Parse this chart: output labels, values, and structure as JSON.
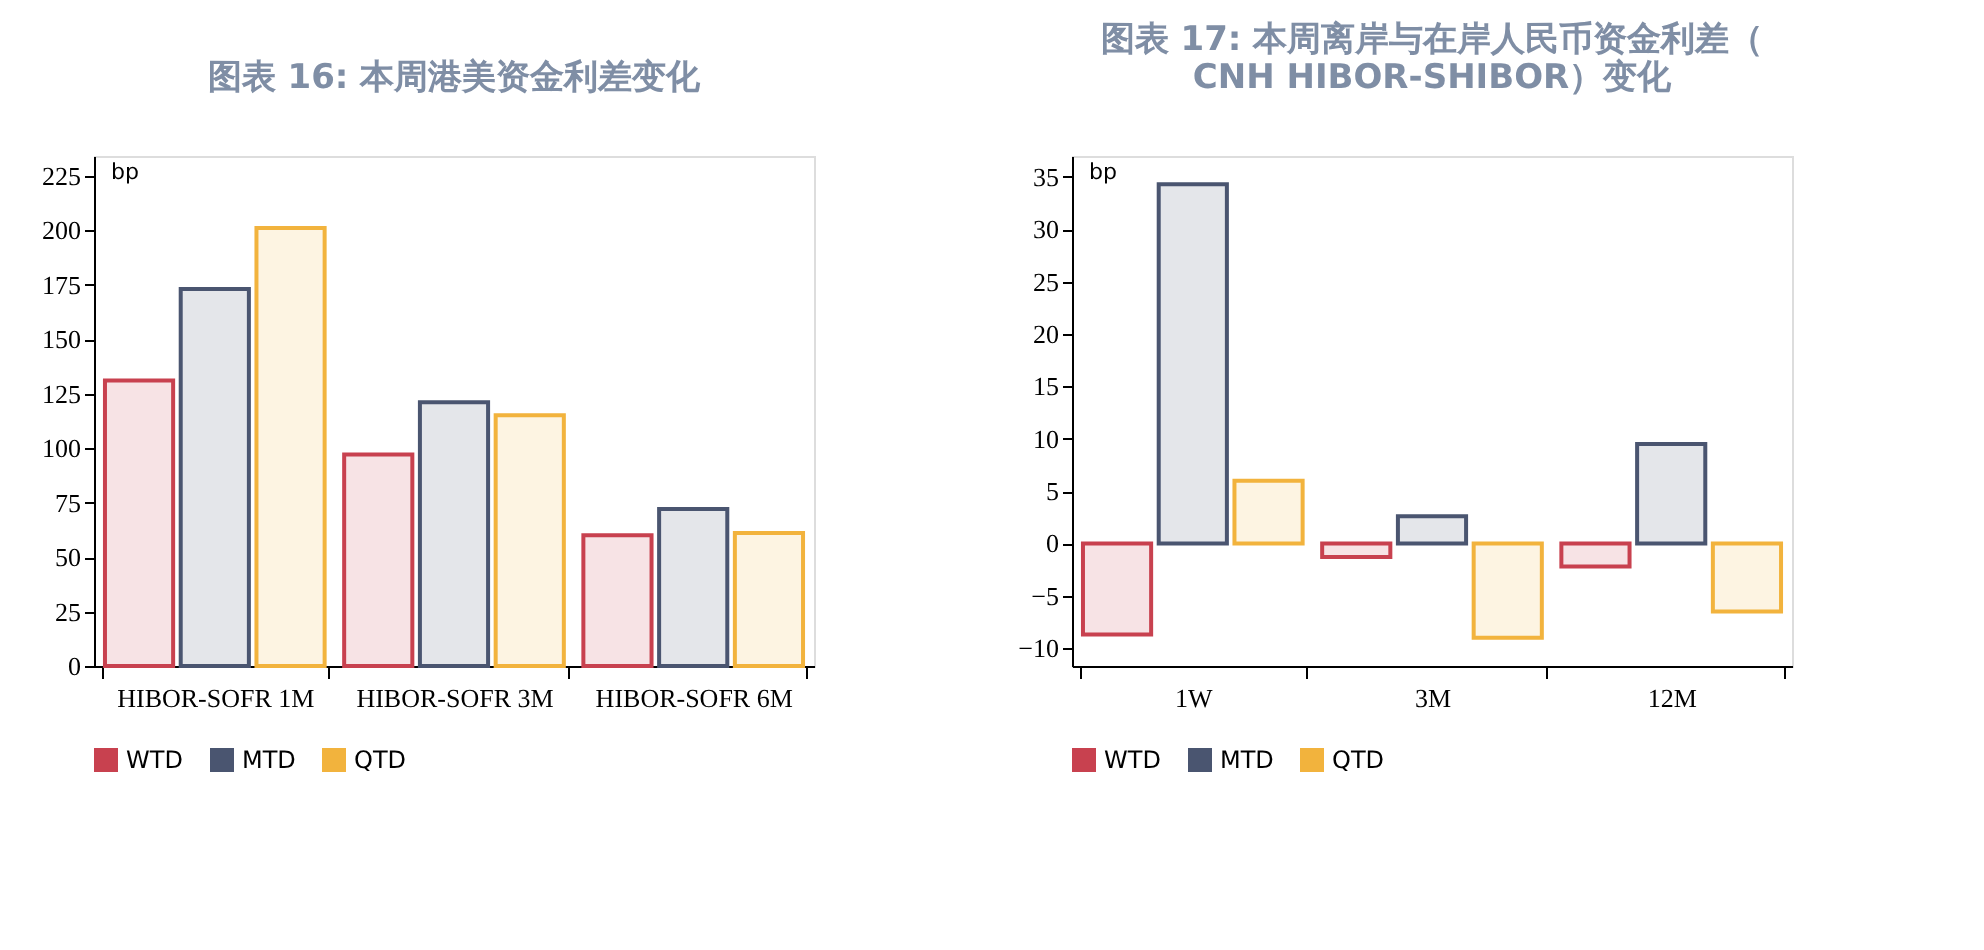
{
  "chart_data": [
    {
      "type": "bar",
      "title": "图表 16: 本周港美资金利差变化",
      "ylabel": "bp",
      "categories": [
        "HIBOR-SOFR 1M",
        "HIBOR-SOFR 3M",
        "HIBOR-SOFR 6M"
      ],
      "series": [
        {
          "name": "WTD",
          "color": "#c8414f",
          "values": [
            131,
            97,
            60
          ]
        },
        {
          "name": "MTD",
          "color": "#4a5570",
          "values": [
            173,
            121,
            72
          ]
        },
        {
          "name": "QTD",
          "color": "#f2b33d",
          "values": [
            201,
            115,
            61
          ]
        }
      ],
      "ylim": [
        0,
        234
      ],
      "yticks": [
        0,
        25,
        50,
        75,
        100,
        125,
        150,
        175,
        200,
        225
      ],
      "grid": false,
      "legend": "bottom"
    },
    {
      "type": "bar",
      "title": "图表 17: 本周离岸与在岸人民币资金利差（CNH HIBOR-SHIBOR）变化",
      "ylabel": "bp",
      "categories": [
        "1W",
        "3M",
        "12M"
      ],
      "series": [
        {
          "name": "WTD",
          "color": "#c8414f",
          "values": [
            -8.7,
            -1.3,
            -2.2
          ]
        },
        {
          "name": "MTD",
          "color": "#4a5570",
          "values": [
            34.3,
            2.6,
            9.5
          ]
        },
        {
          "name": "QTD",
          "color": "#f2b33d",
          "values": [
            6,
            -9,
            -6.5
          ]
        }
      ],
      "ylim": [
        -11.7,
        37
      ],
      "yticks": [
        -10,
        -5,
        0,
        5,
        10,
        15,
        20,
        25,
        30,
        35
      ],
      "grid": false,
      "legend": "bottom"
    }
  ]
}
